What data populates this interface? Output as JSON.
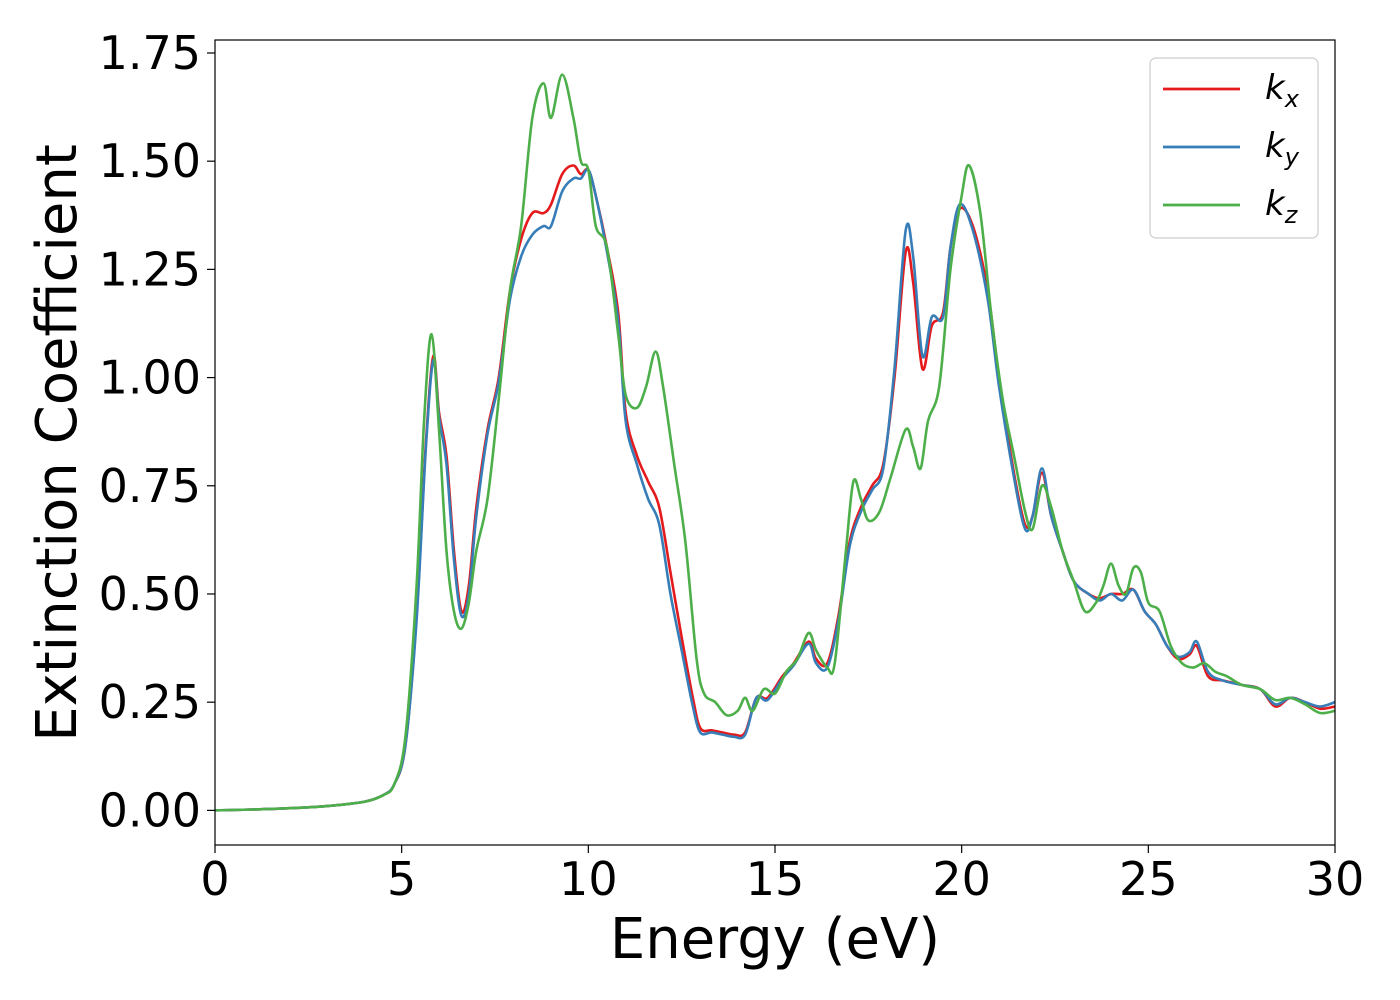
{
  "chart_data": {
    "type": "line",
    "xlabel": "Energy (eV)",
    "ylabel": "Extinction Coefficient",
    "xlim": [
      0,
      30
    ],
    "ylim": [
      -0.08,
      1.78
    ],
    "xticks": [
      0,
      5,
      10,
      15,
      20,
      25,
      30
    ],
    "xtick_labels": [
      "0",
      "5",
      "10",
      "15",
      "20",
      "25",
      "30"
    ],
    "yticks": [
      0.0,
      0.25,
      0.5,
      0.75,
      1.0,
      1.25,
      1.5,
      1.75
    ],
    "ytick_labels": [
      "0.00",
      "0.25",
      "0.50",
      "0.75",
      "1.00",
      "1.25",
      "1.50",
      "1.75"
    ],
    "grid": false,
    "legend_position": "top-right",
    "series": [
      {
        "name": "k_x",
        "label_base": "k",
        "label_sub": "x",
        "color": "#e41a1c",
        "points": [
          [
            0,
            0.0
          ],
          [
            1,
            0.002
          ],
          [
            2,
            0.005
          ],
          [
            3,
            0.01
          ],
          [
            4,
            0.02
          ],
          [
            4.5,
            0.035
          ],
          [
            4.8,
            0.06
          ],
          [
            5.1,
            0.15
          ],
          [
            5.4,
            0.45
          ],
          [
            5.65,
            0.85
          ],
          [
            5.85,
            1.05
          ],
          [
            6.0,
            0.92
          ],
          [
            6.2,
            0.82
          ],
          [
            6.4,
            0.6
          ],
          [
            6.6,
            0.46
          ],
          [
            6.8,
            0.52
          ],
          [
            7.0,
            0.7
          ],
          [
            7.3,
            0.88
          ],
          [
            7.6,
            1.0
          ],
          [
            7.9,
            1.2
          ],
          [
            8.2,
            1.32
          ],
          [
            8.5,
            1.38
          ],
          [
            8.8,
            1.38
          ],
          [
            9.0,
            1.4
          ],
          [
            9.3,
            1.47
          ],
          [
            9.6,
            1.49
          ],
          [
            9.8,
            1.47
          ],
          [
            10.0,
            1.48
          ],
          [
            10.2,
            1.42
          ],
          [
            10.5,
            1.3
          ],
          [
            10.8,
            1.15
          ],
          [
            11.0,
            0.92
          ],
          [
            11.3,
            0.82
          ],
          [
            11.6,
            0.76
          ],
          [
            11.9,
            0.7
          ],
          [
            12.2,
            0.55
          ],
          [
            12.5,
            0.4
          ],
          [
            12.8,
            0.26
          ],
          [
            13.0,
            0.19
          ],
          [
            13.3,
            0.185
          ],
          [
            13.6,
            0.18
          ],
          [
            13.9,
            0.175
          ],
          [
            14.2,
            0.18
          ],
          [
            14.5,
            0.26
          ],
          [
            14.8,
            0.26
          ],
          [
            15.2,
            0.31
          ],
          [
            15.5,
            0.34
          ],
          [
            15.9,
            0.39
          ],
          [
            16.1,
            0.35
          ],
          [
            16.4,
            0.34
          ],
          [
            16.7,
            0.45
          ],
          [
            17.0,
            0.62
          ],
          [
            17.3,
            0.7
          ],
          [
            17.6,
            0.75
          ],
          [
            17.9,
            0.8
          ],
          [
            18.2,
            1.0
          ],
          [
            18.5,
            1.29
          ],
          [
            18.7,
            1.22
          ],
          [
            18.95,
            1.02
          ],
          [
            19.2,
            1.12
          ],
          [
            19.5,
            1.15
          ],
          [
            19.7,
            1.3
          ],
          [
            19.95,
            1.39
          ],
          [
            20.3,
            1.35
          ],
          [
            20.7,
            1.2
          ],
          [
            21.0,
            1.0
          ],
          [
            21.4,
            0.78
          ],
          [
            21.7,
            0.66
          ],
          [
            21.9,
            0.68
          ],
          [
            22.15,
            0.78
          ],
          [
            22.4,
            0.68
          ],
          [
            22.7,
            0.6
          ],
          [
            23.0,
            0.53
          ],
          [
            23.4,
            0.5
          ],
          [
            23.7,
            0.49
          ],
          [
            24.0,
            0.5
          ],
          [
            24.3,
            0.5
          ],
          [
            24.6,
            0.51
          ],
          [
            24.9,
            0.46
          ],
          [
            25.2,
            0.43
          ],
          [
            25.5,
            0.38
          ],
          [
            25.8,
            0.35
          ],
          [
            26.1,
            0.36
          ],
          [
            26.3,
            0.38
          ],
          [
            26.6,
            0.31
          ],
          [
            27.0,
            0.3
          ],
          [
            27.5,
            0.29
          ],
          [
            28.0,
            0.28
          ],
          [
            28.4,
            0.24
          ],
          [
            28.8,
            0.26
          ],
          [
            29.2,
            0.25
          ],
          [
            29.6,
            0.235
          ],
          [
            30,
            0.24
          ]
        ]
      },
      {
        "name": "k_y",
        "label_base": "k",
        "label_sub": "y",
        "color": "#377eb8",
        "points": [
          [
            0,
            0.0
          ],
          [
            1,
            0.002
          ],
          [
            2,
            0.005
          ],
          [
            3,
            0.01
          ],
          [
            4,
            0.02
          ],
          [
            4.5,
            0.035
          ],
          [
            4.8,
            0.06
          ],
          [
            5.1,
            0.15
          ],
          [
            5.4,
            0.44
          ],
          [
            5.65,
            0.84
          ],
          [
            5.85,
            1.04
          ],
          [
            6.0,
            0.91
          ],
          [
            6.2,
            0.8
          ],
          [
            6.4,
            0.58
          ],
          [
            6.6,
            0.45
          ],
          [
            6.8,
            0.5
          ],
          [
            7.0,
            0.68
          ],
          [
            7.3,
            0.87
          ],
          [
            7.6,
            0.99
          ],
          [
            7.9,
            1.18
          ],
          [
            8.2,
            1.28
          ],
          [
            8.5,
            1.33
          ],
          [
            8.8,
            1.35
          ],
          [
            9.0,
            1.35
          ],
          [
            9.3,
            1.43
          ],
          [
            9.6,
            1.46
          ],
          [
            9.8,
            1.46
          ],
          [
            10.0,
            1.48
          ],
          [
            10.2,
            1.42
          ],
          [
            10.5,
            1.29
          ],
          [
            10.8,
            1.13
          ],
          [
            11.0,
            0.9
          ],
          [
            11.3,
            0.8
          ],
          [
            11.6,
            0.72
          ],
          [
            11.9,
            0.66
          ],
          [
            12.2,
            0.5
          ],
          [
            12.5,
            0.37
          ],
          [
            12.8,
            0.24
          ],
          [
            13.0,
            0.18
          ],
          [
            13.3,
            0.18
          ],
          [
            13.6,
            0.175
          ],
          [
            13.9,
            0.17
          ],
          [
            14.2,
            0.175
          ],
          [
            14.5,
            0.26
          ],
          [
            14.8,
            0.255
          ],
          [
            15.2,
            0.305
          ],
          [
            15.5,
            0.335
          ],
          [
            15.9,
            0.385
          ],
          [
            16.1,
            0.34
          ],
          [
            16.4,
            0.33
          ],
          [
            16.7,
            0.44
          ],
          [
            17.0,
            0.61
          ],
          [
            17.3,
            0.69
          ],
          [
            17.6,
            0.74
          ],
          [
            17.9,
            0.79
          ],
          [
            18.2,
            1.02
          ],
          [
            18.5,
            1.34
          ],
          [
            18.7,
            1.28
          ],
          [
            18.95,
            1.05
          ],
          [
            19.2,
            1.14
          ],
          [
            19.5,
            1.14
          ],
          [
            19.7,
            1.3
          ],
          [
            19.95,
            1.4
          ],
          [
            20.3,
            1.34
          ],
          [
            20.7,
            1.18
          ],
          [
            21.0,
            0.98
          ],
          [
            21.4,
            0.77
          ],
          [
            21.7,
            0.65
          ],
          [
            21.9,
            0.68
          ],
          [
            22.15,
            0.79
          ],
          [
            22.4,
            0.68
          ],
          [
            22.7,
            0.6
          ],
          [
            23.0,
            0.53
          ],
          [
            23.4,
            0.5
          ],
          [
            23.7,
            0.485
          ],
          [
            24.0,
            0.5
          ],
          [
            24.3,
            0.485
          ],
          [
            24.6,
            0.51
          ],
          [
            24.9,
            0.46
          ],
          [
            25.2,
            0.43
          ],
          [
            25.5,
            0.38
          ],
          [
            25.8,
            0.355
          ],
          [
            26.1,
            0.365
          ],
          [
            26.3,
            0.39
          ],
          [
            26.6,
            0.32
          ],
          [
            27.0,
            0.3
          ],
          [
            27.5,
            0.29
          ],
          [
            28.0,
            0.28
          ],
          [
            28.4,
            0.245
          ],
          [
            28.8,
            0.26
          ],
          [
            29.2,
            0.25
          ],
          [
            29.6,
            0.24
          ],
          [
            30,
            0.25
          ]
        ]
      },
      {
        "name": "k_z",
        "label_base": "k",
        "label_sub": "z",
        "color": "#4daf4a",
        "points": [
          [
            0,
            0.0
          ],
          [
            1,
            0.002
          ],
          [
            2,
            0.005
          ],
          [
            3,
            0.01
          ],
          [
            4,
            0.02
          ],
          [
            4.5,
            0.035
          ],
          [
            4.8,
            0.06
          ],
          [
            5.1,
            0.17
          ],
          [
            5.4,
            0.52
          ],
          [
            5.6,
            0.9
          ],
          [
            5.8,
            1.1
          ],
          [
            6.0,
            0.88
          ],
          [
            6.2,
            0.6
          ],
          [
            6.4,
            0.46
          ],
          [
            6.6,
            0.42
          ],
          [
            6.8,
            0.48
          ],
          [
            7.0,
            0.6
          ],
          [
            7.3,
            0.72
          ],
          [
            7.6,
            0.95
          ],
          [
            7.9,
            1.2
          ],
          [
            8.2,
            1.35
          ],
          [
            8.5,
            1.6
          ],
          [
            8.8,
            1.68
          ],
          [
            9.0,
            1.6
          ],
          [
            9.3,
            1.7
          ],
          [
            9.6,
            1.6
          ],
          [
            9.8,
            1.5
          ],
          [
            10.0,
            1.48
          ],
          [
            10.2,
            1.35
          ],
          [
            10.5,
            1.3
          ],
          [
            10.8,
            1.1
          ],
          [
            11.0,
            0.96
          ],
          [
            11.3,
            0.93
          ],
          [
            11.55,
            0.98
          ],
          [
            11.8,
            1.06
          ],
          [
            12.0,
            0.98
          ],
          [
            12.3,
            0.8
          ],
          [
            12.6,
            0.62
          ],
          [
            12.9,
            0.35
          ],
          [
            13.1,
            0.27
          ],
          [
            13.4,
            0.25
          ],
          [
            13.7,
            0.22
          ],
          [
            14.0,
            0.23
          ],
          [
            14.2,
            0.26
          ],
          [
            14.4,
            0.23
          ],
          [
            14.7,
            0.28
          ],
          [
            15.0,
            0.27
          ],
          [
            15.3,
            0.32
          ],
          [
            15.6,
            0.35
          ],
          [
            15.9,
            0.41
          ],
          [
            16.1,
            0.37
          ],
          [
            16.4,
            0.33
          ],
          [
            16.6,
            0.34
          ],
          [
            16.9,
            0.6
          ],
          [
            17.1,
            0.76
          ],
          [
            17.3,
            0.72
          ],
          [
            17.5,
            0.67
          ],
          [
            17.8,
            0.69
          ],
          [
            18.1,
            0.77
          ],
          [
            18.5,
            0.88
          ],
          [
            18.7,
            0.84
          ],
          [
            18.9,
            0.79
          ],
          [
            19.1,
            0.9
          ],
          [
            19.4,
            0.98
          ],
          [
            19.7,
            1.25
          ],
          [
            20.0,
            1.42
          ],
          [
            20.2,
            1.49
          ],
          [
            20.5,
            1.38
          ],
          [
            20.8,
            1.14
          ],
          [
            21.1,
            0.95
          ],
          [
            21.4,
            0.82
          ],
          [
            21.7,
            0.69
          ],
          [
            21.9,
            0.65
          ],
          [
            22.15,
            0.75
          ],
          [
            22.4,
            0.7
          ],
          [
            22.7,
            0.6
          ],
          [
            23.0,
            0.53
          ],
          [
            23.3,
            0.46
          ],
          [
            23.6,
            0.48
          ],
          [
            23.8,
            0.52
          ],
          [
            24.0,
            0.57
          ],
          [
            24.2,
            0.52
          ],
          [
            24.4,
            0.5
          ],
          [
            24.6,
            0.56
          ],
          [
            24.8,
            0.55
          ],
          [
            25.0,
            0.48
          ],
          [
            25.3,
            0.46
          ],
          [
            25.6,
            0.38
          ],
          [
            25.9,
            0.34
          ],
          [
            26.2,
            0.33
          ],
          [
            26.5,
            0.34
          ],
          [
            26.8,
            0.32
          ],
          [
            27.1,
            0.31
          ],
          [
            27.5,
            0.29
          ],
          [
            28.0,
            0.28
          ],
          [
            28.4,
            0.255
          ],
          [
            28.8,
            0.26
          ],
          [
            29.2,
            0.245
          ],
          [
            29.6,
            0.225
          ],
          [
            30,
            0.23
          ]
        ]
      }
    ]
  }
}
